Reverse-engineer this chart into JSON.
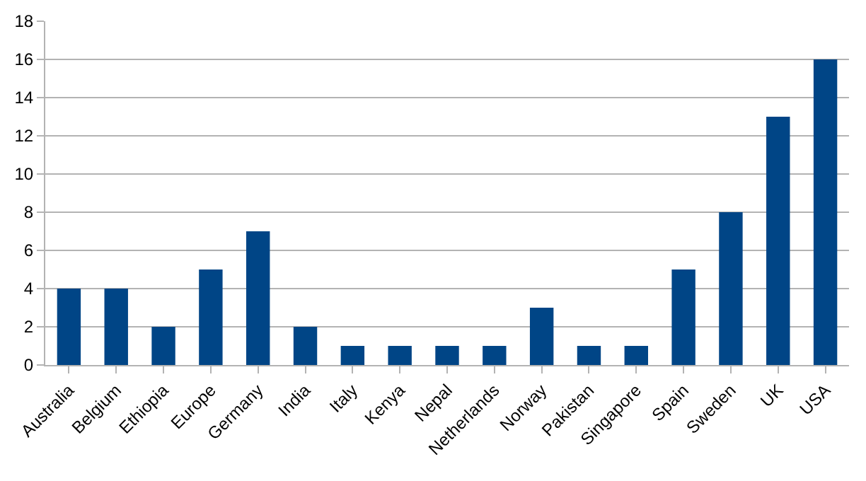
{
  "chart_data": {
    "type": "bar",
    "categories": [
      "Australia",
      "Belgium",
      "Ethiopia",
      "Europe",
      "Germany",
      "India",
      "Italy",
      "Kenya",
      "Nepal",
      "Netherlands",
      "Norway",
      "Pakistan",
      "Singapore",
      "Spain",
      "Sweden",
      "UK",
      "USA"
    ],
    "values": [
      4,
      4,
      2,
      5,
      7,
      2,
      1,
      1,
      1,
      1,
      3,
      1,
      1,
      5,
      8,
      13,
      16
    ],
    "color": "#004586",
    "ylim": [
      0,
      18
    ],
    "yticks": [
      0,
      2,
      4,
      6,
      8,
      10,
      12,
      14,
      16,
      18
    ],
    "grid": "y"
  }
}
